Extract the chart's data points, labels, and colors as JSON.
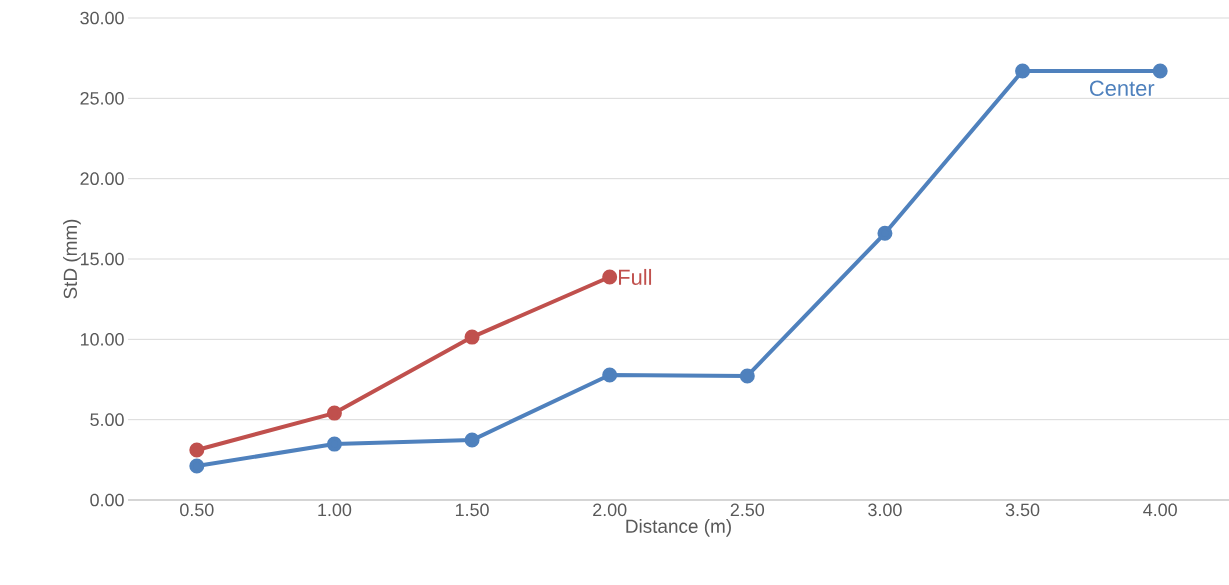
{
  "chart_data": {
    "type": "line",
    "xlabel": "Distance (m)",
    "ylabel": "StD (mm)",
    "categories": [
      "0.50",
      "1.00",
      "1.50",
      "2.00",
      "2.50",
      "3.00",
      "3.50",
      "4.00"
    ],
    "series": [
      {
        "name": "Full",
        "color": "#c0504d",
        "values": [
          3.11,
          5.41,
          10.14,
          13.88,
          null,
          null,
          null,
          null
        ]
      },
      {
        "name": "Center",
        "color": "#4f81bd",
        "values": [
          2.12,
          3.48,
          3.73,
          7.78,
          7.72,
          16.6,
          26.7,
          26.7
        ]
      }
    ],
    "ylim": [
      0,
      30
    ],
    "yticks": [
      {
        "value": 0,
        "label": "0.00"
      },
      {
        "value": 5,
        "label": "5.00"
      },
      {
        "value": 10,
        "label": "10.00"
      },
      {
        "value": 15,
        "label": "15.00"
      },
      {
        "value": 20,
        "label": "20.00"
      },
      {
        "value": 25,
        "label": "25.00"
      },
      {
        "value": 30,
        "label": "30.00"
      }
    ],
    "grid": "y",
    "marker": "circle",
    "line_style": "solid"
  }
}
